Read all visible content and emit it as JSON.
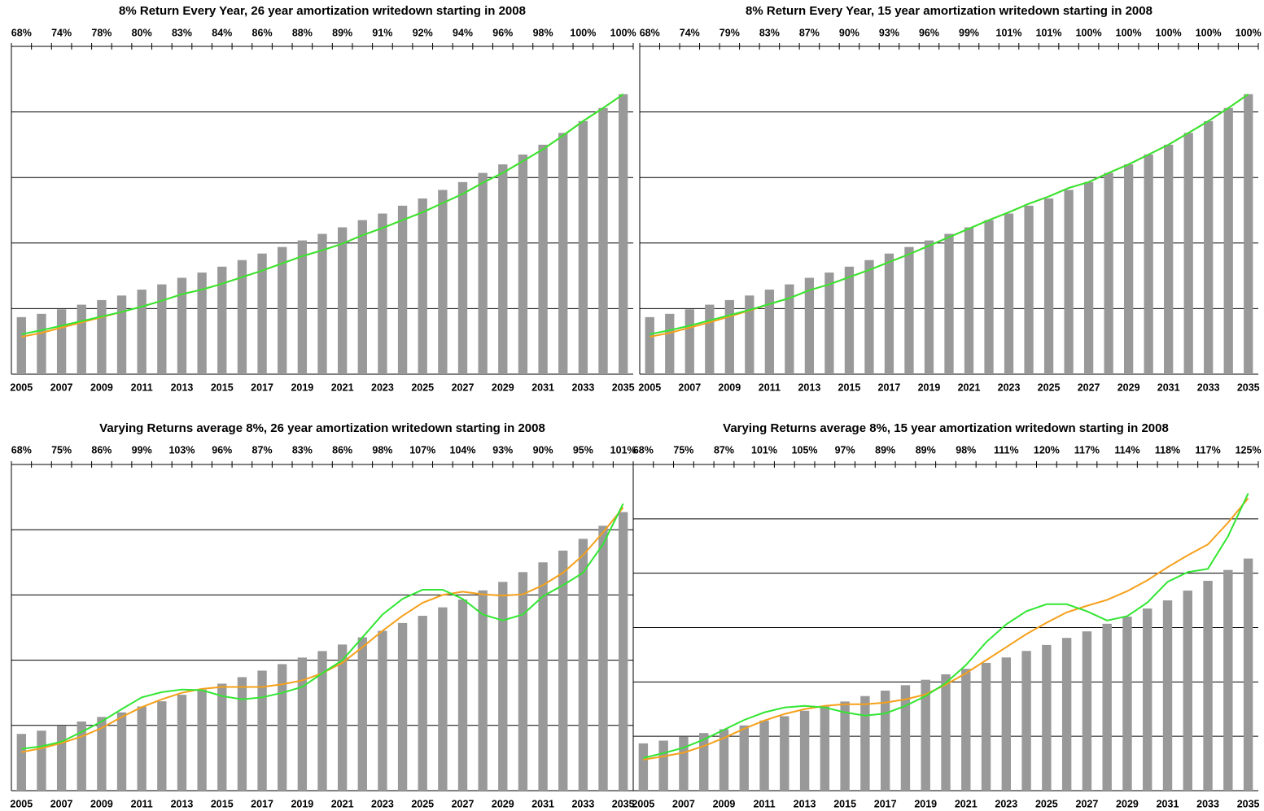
{
  "chart_data": [
    {
      "type": "bar",
      "title": "8% Return Every Year, 26 year amortization writedown starting in 2008",
      "categories": [
        "2005",
        null,
        "2007",
        null,
        "2009",
        null,
        "2011",
        null,
        "2013",
        null,
        "2015",
        null,
        "2017",
        null,
        "2019",
        null,
        "2021",
        null,
        "2023",
        null,
        "2025",
        null,
        "2027",
        null,
        "2029",
        null,
        "2031",
        null,
        "2033",
        null,
        "2035"
      ],
      "top_categories": [
        "68%",
        null,
        "74%",
        null,
        "78%",
        null,
        "80%",
        null,
        "83%",
        null,
        "84%",
        null,
        "86%",
        null,
        "88%",
        null,
        "89%",
        null,
        "91%",
        null,
        "92%",
        null,
        "94%",
        null,
        "96%",
        null,
        "98%",
        null,
        "100%",
        null,
        "100%"
      ],
      "ylim": [
        0,
        5
      ],
      "yticks": [
        1,
        2,
        3,
        4
      ],
      "grid": true,
      "series": [
        {
          "type": "bar",
          "color": "#999999",
          "values": [
            0.87,
            0.92,
            0.99,
            1.06,
            1.13,
            1.2,
            1.29,
            1.37,
            1.47,
            1.55,
            1.64,
            1.74,
            1.84,
            1.94,
            2.04,
            2.14,
            2.24,
            2.35,
            2.45,
            2.57,
            2.68,
            2.81,
            2.93,
            3.07,
            3.2,
            3.35,
            3.5,
            3.68,
            3.86,
            4.06,
            4.27
          ]
        },
        {
          "type": "line",
          "color": "#f5a01a",
          "values": [
            0.57,
            0.63,
            0.71,
            0.79,
            0.87,
            0.95,
            1.03,
            1.12,
            1.22,
            1.29,
            1.38,
            1.48,
            1.58,
            1.69,
            1.8,
            1.89,
            1.99,
            2.12,
            2.23,
            2.35,
            2.47,
            2.61,
            2.75,
            2.92,
            3.07,
            3.25,
            3.43,
            3.64,
            3.86,
            4.06,
            4.27
          ]
        },
        {
          "type": "line",
          "color": "#33e633",
          "values": [
            0.61,
            0.67,
            0.74,
            0.81,
            0.88,
            0.95,
            1.03,
            1.12,
            1.22,
            1.29,
            1.38,
            1.48,
            1.58,
            1.69,
            1.8,
            1.89,
            1.99,
            2.12,
            2.23,
            2.35,
            2.47,
            2.61,
            2.75,
            2.92,
            3.07,
            3.25,
            3.43,
            3.64,
            3.86,
            4.06,
            4.27
          ]
        }
      ]
    },
    {
      "type": "bar",
      "title": "8% Return Every Year, 15 year amortization writedown starting in 2008",
      "categories": [
        "2005",
        null,
        "2007",
        null,
        "2009",
        null,
        "2011",
        null,
        "2013",
        null,
        "2015",
        null,
        "2017",
        null,
        "2019",
        null,
        "2021",
        null,
        "2023",
        null,
        "2025",
        null,
        "2027",
        null,
        "2029",
        null,
        "2031",
        null,
        "2033",
        null,
        "2035"
      ],
      "top_categories": [
        "68%",
        null,
        "74%",
        null,
        "79%",
        null,
        "83%",
        null,
        "87%",
        null,
        "90%",
        null,
        "93%",
        null,
        "96%",
        null,
        "99%",
        null,
        "101%",
        null,
        "101%",
        null,
        "100%",
        null,
        "100%",
        null,
        "100%",
        null,
        "100%",
        null,
        "100%"
      ],
      "ylim": [
        0,
        5
      ],
      "yticks": [
        1,
        2,
        3,
        4
      ],
      "grid": true,
      "series": [
        {
          "type": "bar",
          "color": "#999999",
          "values": [
            0.87,
            0.92,
            0.99,
            1.06,
            1.13,
            1.2,
            1.29,
            1.37,
            1.47,
            1.55,
            1.64,
            1.74,
            1.84,
            1.94,
            2.04,
            2.14,
            2.24,
            2.35,
            2.45,
            2.57,
            2.68,
            2.81,
            2.93,
            3.07,
            3.2,
            3.35,
            3.5,
            3.68,
            3.86,
            4.06,
            4.27
          ]
        },
        {
          "type": "line",
          "color": "#f5a01a",
          "values": [
            0.57,
            0.63,
            0.71,
            0.79,
            0.88,
            0.97,
            1.07,
            1.16,
            1.28,
            1.37,
            1.48,
            1.59,
            1.71,
            1.83,
            1.96,
            2.09,
            2.22,
            2.35,
            2.47,
            2.6,
            2.71,
            2.84,
            2.93,
            3.07,
            3.2,
            3.35,
            3.5,
            3.68,
            3.86,
            4.06,
            4.27
          ]
        },
        {
          "type": "line",
          "color": "#33e633",
          "values": [
            0.61,
            0.67,
            0.74,
            0.82,
            0.9,
            0.98,
            1.07,
            1.16,
            1.28,
            1.37,
            1.48,
            1.59,
            1.71,
            1.83,
            1.96,
            2.09,
            2.22,
            2.35,
            2.47,
            2.6,
            2.71,
            2.84,
            2.93,
            3.07,
            3.2,
            3.35,
            3.5,
            3.68,
            3.86,
            4.06,
            4.27
          ]
        }
      ]
    },
    {
      "type": "bar",
      "title": "Varying Returns average 8%, 26 year amortization writedown starting in 2008",
      "categories": [
        "2005",
        null,
        "2007",
        null,
        "2009",
        null,
        "2011",
        null,
        "2013",
        null,
        "2015",
        null,
        "2017",
        null,
        "2019",
        null,
        "2021",
        null,
        "2023",
        null,
        "2025",
        null,
        "2027",
        null,
        "2029",
        null,
        "2031",
        null,
        "2033",
        null,
        "2035"
      ],
      "top_categories": [
        "68%",
        null,
        "75%",
        null,
        "86%",
        null,
        "99%",
        null,
        "103%",
        null,
        "96%",
        null,
        "87%",
        null,
        "83%",
        null,
        "86%",
        null,
        "98%",
        null,
        "107%",
        null,
        "104%",
        null,
        "93%",
        null,
        "90%",
        null,
        "95%",
        null,
        "101%"
      ],
      "ylim": [
        0,
        5
      ],
      "yticks": [
        1,
        2,
        3,
        4
      ],
      "grid": true,
      "series": [
        {
          "type": "bar",
          "color": "#999999",
          "values": [
            0.87,
            0.92,
            0.99,
            1.06,
            1.13,
            1.2,
            1.29,
            1.37,
            1.47,
            1.55,
            1.64,
            1.74,
            1.84,
            1.94,
            2.04,
            2.14,
            2.24,
            2.35,
            2.45,
            2.57,
            2.68,
            2.81,
            2.93,
            3.07,
            3.2,
            3.35,
            3.5,
            3.68,
            3.86,
            4.06,
            4.27
          ]
        },
        {
          "type": "line",
          "color": "#f5a01a",
          "values": [
            0.59,
            0.65,
            0.73,
            0.83,
            0.96,
            1.13,
            1.28,
            1.4,
            1.5,
            1.56,
            1.59,
            1.59,
            1.59,
            1.63,
            1.69,
            1.8,
            1.96,
            2.2,
            2.45,
            2.68,
            2.88,
            3.0,
            3.05,
            3.01,
            2.99,
            3.01,
            3.15,
            3.34,
            3.61,
            3.96,
            4.34
          ]
        },
        {
          "type": "line",
          "color": "#33e633",
          "values": [
            0.64,
            0.68,
            0.75,
            0.9,
            1.06,
            1.25,
            1.43,
            1.51,
            1.55,
            1.54,
            1.45,
            1.4,
            1.43,
            1.5,
            1.59,
            1.8,
            2.0,
            2.35,
            2.7,
            2.94,
            3.08,
            3.08,
            2.94,
            2.7,
            2.61,
            2.7,
            2.98,
            3.15,
            3.34,
            3.78,
            4.4
          ]
        }
      ]
    },
    {
      "type": "bar",
      "title": "Varying Returns average 8%, 15 year amortization writedown starting in 2008",
      "categories": [
        "2005",
        null,
        "2007",
        null,
        "2009",
        null,
        "2011",
        null,
        "2013",
        null,
        "2015",
        null,
        "2017",
        null,
        "2019",
        null,
        "2021",
        null,
        "2023",
        null,
        "2025",
        null,
        "2027",
        null,
        "2029",
        null,
        "2031",
        null,
        "2033",
        null,
        "2035"
      ],
      "top_categories": [
        "68%",
        null,
        "75%",
        null,
        "87%",
        null,
        "101%",
        null,
        "105%",
        null,
        "97%",
        null,
        "89%",
        null,
        "89%",
        null,
        "98%",
        null,
        "111%",
        null,
        "120%",
        null,
        "117%",
        null,
        "114%",
        null,
        "118%",
        null,
        "117%",
        null,
        "125%"
      ],
      "ylim": [
        0,
        6
      ],
      "yticks": [
        1,
        2,
        3,
        4,
        5
      ],
      "grid": true,
      "series": [
        {
          "type": "bar",
          "color": "#999999",
          "values": [
            0.87,
            0.92,
            0.99,
            1.06,
            1.13,
            1.2,
            1.29,
            1.37,
            1.47,
            1.55,
            1.64,
            1.74,
            1.84,
            1.94,
            2.04,
            2.14,
            2.24,
            2.35,
            2.45,
            2.57,
            2.68,
            2.81,
            2.93,
            3.07,
            3.2,
            3.35,
            3.5,
            3.68,
            3.86,
            4.06,
            4.27
          ]
        },
        {
          "type": "line",
          "color": "#f5a01a",
          "values": [
            0.57,
            0.63,
            0.7,
            0.82,
            0.97,
            1.14,
            1.29,
            1.41,
            1.5,
            1.56,
            1.59,
            1.59,
            1.62,
            1.68,
            1.77,
            1.95,
            2.16,
            2.4,
            2.64,
            2.88,
            3.09,
            3.28,
            3.4,
            3.51,
            3.67,
            3.87,
            4.11,
            4.33,
            4.53,
            4.93,
            5.38
          ]
        },
        {
          "type": "line",
          "color": "#33e633",
          "values": [
            0.6,
            0.69,
            0.79,
            0.94,
            1.12,
            1.3,
            1.44,
            1.53,
            1.56,
            1.53,
            1.44,
            1.38,
            1.42,
            1.56,
            1.74,
            1.98,
            2.31,
            2.73,
            3.06,
            3.3,
            3.43,
            3.43,
            3.3,
            3.13,
            3.21,
            3.46,
            3.84,
            4.02,
            4.08,
            4.68,
            5.47
          ]
        }
      ]
    }
  ]
}
